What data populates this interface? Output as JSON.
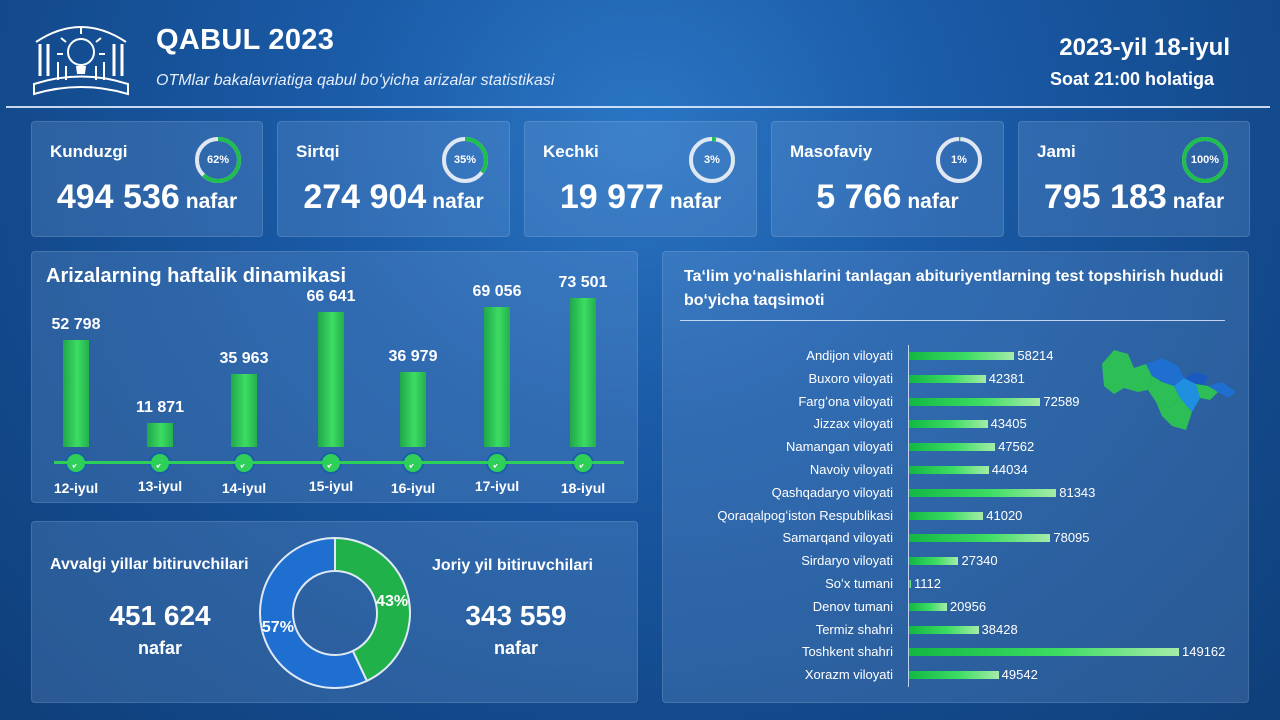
{
  "header": {
    "title": "QABUL 2023",
    "subtitle": "OTMlar bakalavriatiga qabul boʻyicha arizalar statistikasi",
    "date": "2023-yil 18-iyul",
    "time": "Soat 21:00 holatiga"
  },
  "colors": {
    "background": "#134a8c",
    "accent_green": "#2fcf5a",
    "accent_blue": "#1f6fd1"
  },
  "stats": [
    {
      "label": "Kunduzgi",
      "value": "494 536",
      "unit": "nafar",
      "percent": "62%",
      "fraction": 0.62
    },
    {
      "label": "Sirtqi",
      "value": "274 904",
      "unit": "nafar",
      "percent": "35%",
      "fraction": 0.35
    },
    {
      "label": "Kechki",
      "value": "19 977",
      "unit": "nafar",
      "percent": "3%",
      "fraction": 0.03
    },
    {
      "label": "Masofaviy",
      "value": "5 766",
      "unit": "nafar",
      "percent": "1%",
      "fraction": 0.01
    },
    {
      "label": "Jami",
      "value": "795 183",
      "unit": "nafar",
      "percent": "100%",
      "fraction": 1.0
    }
  ],
  "weekly": {
    "title": "Arizalarning haftalik dinamikasi"
  },
  "graduates": {
    "left_label": "Avvalgi yillar bitiruvchilari",
    "left_value": "451 624",
    "left_unit": "nafar",
    "right_label": "Joriy yil bitiruvchilari",
    "right_value": "343 559",
    "right_unit": "nafar"
  },
  "regions": {
    "title": "Taʻlim yoʻnalishlarini tanlagan abituriyentlarning test topshirish hududi boʻyicha taqsimoti",
    "map_icon": "uzbekistan-map-icon"
  },
  "chart_data": [
    {
      "type": "bar",
      "title": "Arizalarning haftalik dinamikasi",
      "categories": [
        "12-iyul",
        "13-iyul",
        "14-iyul",
        "15-iyul",
        "16-iyul",
        "17-iyul",
        "18-iyul"
      ],
      "values": [
        52798,
        11871,
        35963,
        66641,
        36979,
        69056,
        73501
      ],
      "value_labels": [
        "52 798",
        "11 871",
        "35 963",
        "66 641",
        "36 979",
        "69 056",
        "73 501"
      ],
      "ylim": [
        0,
        80000
      ]
    },
    {
      "type": "pie",
      "categories": [
        "Avvalgi yillar bitiruvchilari",
        "Joriy yil bitiruvchilari"
      ],
      "values": [
        57,
        43
      ],
      "labels": [
        "57%",
        "43%"
      ],
      "colors": [
        "#1f6fd1",
        "#21b14b"
      ]
    },
    {
      "type": "bar",
      "orientation": "horizontal",
      "title": "Taʻlim yoʻnalishlarini tanlagan abituriyentlarning test topshirish hududi boʻyicha taqsimoti",
      "categories": [
        "Andijon viloyati",
        "Buxoro viloyati",
        "Fargʻona viloyati",
        "Jizzax viloyati",
        "Namangan viloyati",
        "Navoiy viloyati",
        "Qashqadaryo viloyati",
        "Qoraqalpogʻiston Respublikasi",
        "Samarqand viloyati",
        "Sirdaryo viloyati",
        "Soʻx tumani",
        "Denov tumani",
        "Termiz shahri",
        "Toshkent shahri",
        "Xorazm viloyati"
      ],
      "values": [
        58214,
        42381,
        72589,
        43405,
        47562,
        44034,
        81343,
        41020,
        78095,
        27340,
        1112,
        20956,
        38428,
        149162,
        49542
      ],
      "xlim": [
        0,
        160000
      ]
    }
  ]
}
